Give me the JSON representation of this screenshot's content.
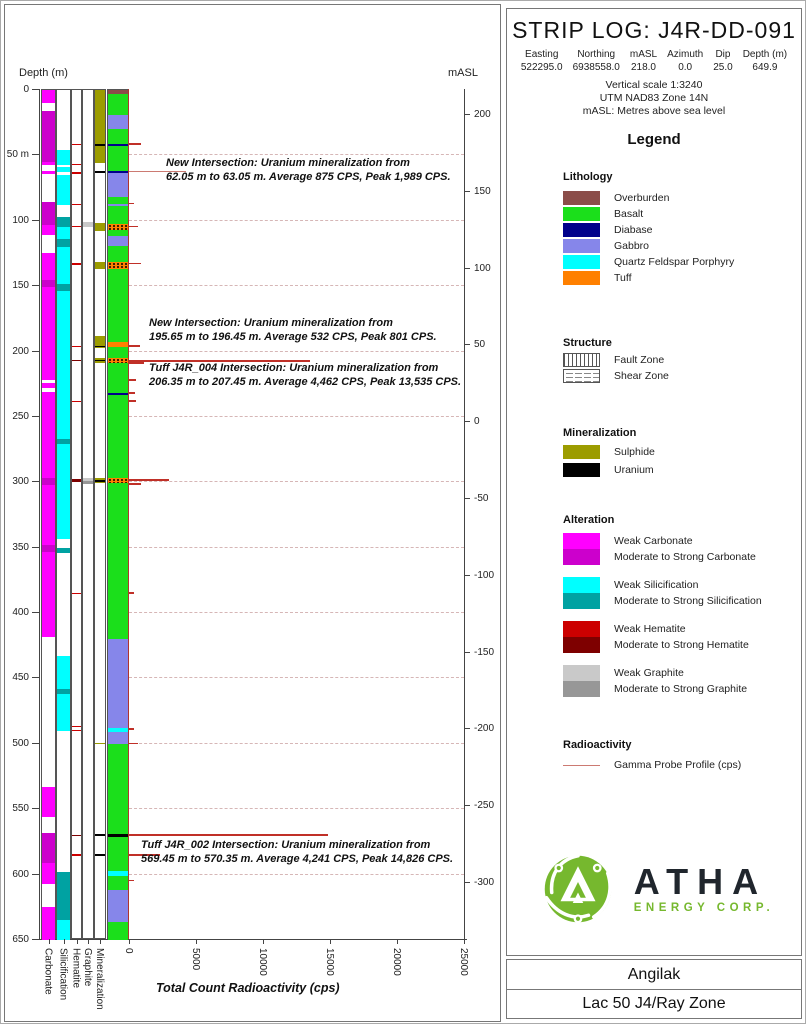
{
  "strip_header": {
    "title": "STRIP LOG: J4R-DD-091",
    "fields": [
      {
        "label": "Easting",
        "value": "522295.0"
      },
      {
        "label": "Northing",
        "value": "6938558.0"
      },
      {
        "label": "mASL",
        "value": "218.0"
      },
      {
        "label": "Azimuth",
        "value": "0.0"
      },
      {
        "label": "Dip",
        "value": "25.0"
      },
      {
        "label": "Depth (m)",
        "value": "649.9"
      }
    ],
    "notes": [
      "Vertical scale 1:3240",
      "UTM NAD83 Zone 14N",
      "mASL: Metres above sea level"
    ]
  },
  "legend": {
    "title": "Legend",
    "lithology": {
      "heading": "Lithology",
      "items": [
        {
          "label": "Overburden",
          "color": "#8b4d49"
        },
        {
          "label": "Basalt",
          "color": "#1bdf1b"
        },
        {
          "label": "Diabase",
          "color": "#00008b"
        },
        {
          "label": "Gabbro",
          "color": "#8686ea"
        },
        {
          "label": "Quartz Feldspar Porphyry",
          "color": "#00ffff"
        },
        {
          "label": "Tuff",
          "color": "#ff8000"
        }
      ]
    },
    "structure": {
      "heading": "Structure",
      "items": [
        {
          "label": "Fault Zone",
          "pattern": "vertical-hatch"
        },
        {
          "label": "Shear Zone",
          "pattern": "dash-hatch"
        }
      ]
    },
    "mineralization": {
      "heading": "Mineralization",
      "items": [
        {
          "label": "Sulphide",
          "color": "#9c9c00"
        },
        {
          "label": "Uranium",
          "color": "#000000"
        }
      ]
    },
    "alteration": {
      "heading": "Alteration",
      "groups": [
        {
          "weak": "Weak Carbonate",
          "strong": "Moderate to Strong Carbonate",
          "weak_color": "#ff00ff",
          "strong_color": "#cc00cc"
        },
        {
          "weak": "Weak Silicification",
          "strong": "Moderate to Strong Silicification",
          "weak_color": "#00ffff",
          "strong_color": "#00a2a2"
        },
        {
          "weak": "Weak Hematite",
          "strong": "Moderate to Strong Hematite",
          "weak_color": "#cc0000",
          "strong_color": "#7e0000"
        },
        {
          "weak": "Weak Graphite",
          "strong": "Moderate to Strong Graphite",
          "weak_color": "#c9c9c9",
          "strong_color": "#979797"
        }
      ]
    },
    "radioactivity": {
      "heading": "Radioactivity",
      "label": "Gamma Probe Profile (cps)",
      "line_color": "#cc7a72"
    }
  },
  "logo": {
    "brand": "ATHA",
    "subtitle": "ENERGY CORP.",
    "green": "#76b82e",
    "dark": "#20262d"
  },
  "title_block": {
    "project": "Angilak",
    "zone": "Lac 50 J4/Ray Zone"
  },
  "chart_data": {
    "type": "strip-log",
    "depth_axis": {
      "label": "Depth (m)",
      "min": 0,
      "max": 650,
      "tick_interval": 50,
      "tick_labels": [
        "0",
        "50 m",
        "100",
        "150",
        "200",
        "250",
        "300",
        "350",
        "400",
        "450",
        "500",
        "550",
        "600",
        "650"
      ]
    },
    "masl_axis": {
      "label": "mASL",
      "ticks": [
        200,
        150,
        100,
        50,
        0,
        -50,
        -100,
        -150,
        -200,
        -250,
        -300
      ]
    },
    "x_axis": {
      "title": "Total Count Radioactivity (cps)",
      "min": 0,
      "max": 25000,
      "ticks": [
        0,
        5000,
        10000,
        15000,
        20000,
        25000
      ]
    },
    "column_labels": [
      "Carbonate",
      "Silicification",
      "Hematite",
      "Graphite",
      "Mineralization"
    ],
    "palette": {
      "Overburden": "#8b4d49",
      "Basalt": "#1bdf1b",
      "Diabase": "#00008b",
      "Gabbro": "#8686ea",
      "QFP": "#00ffff",
      "Tuff": "#ff8000",
      "Sulphide": "#9c9c00",
      "Uranium": "#000000",
      "carbonate_weak": "#ff00ff",
      "carbonate_strong": "#cc00cc",
      "silicification_weak": "#00ffff",
      "silicification_strong": "#00a2a2",
      "hematite_weak": "#cc0000",
      "hematite_strong": "#7e0000",
      "graphite_weak": "#c9c9c9",
      "graphite_strong": "#979797",
      "gamma": "#c03028",
      "gridline": "#d6b6b6"
    },
    "lithology_intervals": [
      {
        "from": 0,
        "to": 3,
        "unit": "Overburden"
      },
      {
        "from": 3,
        "to": 19,
        "unit": "Basalt"
      },
      {
        "from": 19,
        "to": 30,
        "unit": "Gabbro"
      },
      {
        "from": 30,
        "to": 41,
        "unit": "Basalt"
      },
      {
        "from": 41,
        "to": 42.5,
        "unit": "Diabase"
      },
      {
        "from": 42.5,
        "to": 61.8,
        "unit": "Basalt"
      },
      {
        "from": 61.8,
        "to": 63.5,
        "unit": "Diabase"
      },
      {
        "from": 63.5,
        "to": 82,
        "unit": "Gabbro"
      },
      {
        "from": 82,
        "to": 87.5,
        "unit": "Basalt"
      },
      {
        "from": 87.5,
        "to": 89,
        "unit": "Gabbro"
      },
      {
        "from": 89,
        "to": 102.5,
        "unit": "Basalt"
      },
      {
        "from": 102.5,
        "to": 107,
        "unit": "Tuff",
        "dots": true
      },
      {
        "from": 107,
        "to": 112,
        "unit": "Basalt"
      },
      {
        "from": 112,
        "to": 119,
        "unit": "Gabbro"
      },
      {
        "from": 119,
        "to": 131.5,
        "unit": "Basalt"
      },
      {
        "from": 131.5,
        "to": 137,
        "unit": "Tuff",
        "dots": true
      },
      {
        "from": 137,
        "to": 193,
        "unit": "Basalt"
      },
      {
        "from": 193,
        "to": 196.5,
        "unit": "Tuff"
      },
      {
        "from": 196.5,
        "to": 205,
        "unit": "Basalt"
      },
      {
        "from": 205,
        "to": 209,
        "unit": "Tuff",
        "dots": true
      },
      {
        "from": 209,
        "to": 231.5,
        "unit": "Basalt"
      },
      {
        "from": 231.5,
        "to": 233,
        "unit": "Diabase"
      },
      {
        "from": 233,
        "to": 297,
        "unit": "Basalt"
      },
      {
        "from": 297,
        "to": 300.5,
        "unit": "Tuff",
        "dots": true
      },
      {
        "from": 300.5,
        "to": 420,
        "unit": "Basalt"
      },
      {
        "from": 420,
        "to": 488,
        "unit": "Gabbro"
      },
      {
        "from": 488,
        "to": 491,
        "unit": "QFP"
      },
      {
        "from": 491,
        "to": 500,
        "unit": "Gabbro"
      },
      {
        "from": 500,
        "to": 569,
        "unit": "Basalt"
      },
      {
        "from": 569,
        "to": 571,
        "unit": "Uranium"
      },
      {
        "from": 571,
        "to": 597,
        "unit": "Basalt"
      },
      {
        "from": 597,
        "to": 601,
        "unit": "QFP"
      },
      {
        "from": 601,
        "to": 612,
        "unit": "Basalt"
      },
      {
        "from": 612,
        "to": 636,
        "unit": "Gabbro"
      },
      {
        "from": 636,
        "to": 650,
        "unit": "Basalt"
      }
    ],
    "carbonate_intervals": [
      {
        "from": 0,
        "to": 10,
        "grade": "weak"
      },
      {
        "from": 16,
        "to": 55,
        "grade": "strong"
      },
      {
        "from": 55,
        "to": 57,
        "grade": "weak"
      },
      {
        "from": 62,
        "to": 64,
        "grade": "weak"
      },
      {
        "from": 86,
        "to": 103,
        "grade": "strong"
      },
      {
        "from": 103,
        "to": 111,
        "grade": "weak"
      },
      {
        "from": 125,
        "to": 145,
        "grade": "weak"
      },
      {
        "from": 145,
        "to": 151,
        "grade": "strong"
      },
      {
        "from": 151,
        "to": 222,
        "grade": "weak"
      },
      {
        "from": 224,
        "to": 228,
        "grade": "weak"
      },
      {
        "from": 231,
        "to": 297,
        "grade": "weak"
      },
      {
        "from": 297,
        "to": 302,
        "grade": "strong"
      },
      {
        "from": 302,
        "to": 348,
        "grade": "weak"
      },
      {
        "from": 348,
        "to": 353,
        "grade": "strong"
      },
      {
        "from": 353,
        "to": 418,
        "grade": "weak"
      },
      {
        "from": 533,
        "to": 556,
        "grade": "weak"
      },
      {
        "from": 568,
        "to": 591,
        "grade": "strong"
      },
      {
        "from": 591,
        "to": 607,
        "grade": "weak"
      },
      {
        "from": 625,
        "to": 650,
        "grade": "weak"
      }
    ],
    "silicification_intervals": [
      {
        "from": 46,
        "to": 57,
        "grade": "weak"
      },
      {
        "from": 59,
        "to": 63,
        "grade": "weak"
      },
      {
        "from": 65,
        "to": 88,
        "grade": "weak"
      },
      {
        "from": 97,
        "to": 105,
        "grade": "strong"
      },
      {
        "from": 105,
        "to": 114,
        "grade": "weak"
      },
      {
        "from": 114,
        "to": 120,
        "grade": "strong"
      },
      {
        "from": 120,
        "to": 148,
        "grade": "weak"
      },
      {
        "from": 148,
        "to": 154,
        "grade": "strong"
      },
      {
        "from": 154,
        "to": 267,
        "grade": "weak"
      },
      {
        "from": 267,
        "to": 271,
        "grade": "strong"
      },
      {
        "from": 271,
        "to": 343,
        "grade": "weak"
      },
      {
        "from": 350,
        "to": 354,
        "grade": "strong"
      },
      {
        "from": 433,
        "to": 458,
        "grade": "weak"
      },
      {
        "from": 458,
        "to": 462,
        "grade": "strong"
      },
      {
        "from": 462,
        "to": 490,
        "grade": "weak"
      },
      {
        "from": 598,
        "to": 635,
        "grade": "strong"
      },
      {
        "from": 635,
        "to": 650,
        "grade": "weak"
      }
    ],
    "hematite_intervals": [
      {
        "from": 41,
        "to": 42,
        "grade": "weak"
      },
      {
        "from": 56.5,
        "to": 57.5,
        "grade": "weak"
      },
      {
        "from": 63,
        "to": 64,
        "grade": "weak"
      },
      {
        "from": 87,
        "to": 88,
        "grade": "weak"
      },
      {
        "from": 104,
        "to": 105,
        "grade": "weak"
      },
      {
        "from": 132.5,
        "to": 134,
        "grade": "weak"
      },
      {
        "from": 195.5,
        "to": 196.5,
        "grade": "weak"
      },
      {
        "from": 206.5,
        "to": 207.5,
        "grade": "strong"
      },
      {
        "from": 237.5,
        "to": 238.5,
        "grade": "weak"
      },
      {
        "from": 297.5,
        "to": 299.5,
        "grade": "strong"
      },
      {
        "from": 384.5,
        "to": 385.5,
        "grade": "weak"
      },
      {
        "from": 486.5,
        "to": 487.5,
        "grade": "weak"
      },
      {
        "from": 489.5,
        "to": 490.5,
        "grade": "weak"
      },
      {
        "from": 569.5,
        "to": 570.5,
        "grade": "strong"
      },
      {
        "from": 584.5,
        "to": 585.5,
        "grade": "weak"
      }
    ],
    "graphite_intervals": [
      {
        "from": 101,
        "to": 105,
        "grade": "weak"
      },
      {
        "from": 296.5,
        "to": 299,
        "grade": "weak"
      },
      {
        "from": 299,
        "to": 301.5,
        "grade": "strong"
      }
    ],
    "mineralization_intervals": [
      {
        "from": 0,
        "to": 41,
        "type": "Sulphide"
      },
      {
        "from": 41,
        "to": 42.5,
        "type": "Uranium"
      },
      {
        "from": 42.5,
        "to": 56,
        "type": "Sulphide"
      },
      {
        "from": 62,
        "to": 63.3,
        "type": "Uranium"
      },
      {
        "from": 102,
        "to": 108,
        "type": "Sulphide"
      },
      {
        "from": 131.5,
        "to": 137,
        "type": "Sulphide"
      },
      {
        "from": 188,
        "to": 197,
        "type": "Sulphide"
      },
      {
        "from": 195.6,
        "to": 196.6,
        "type": "Uranium"
      },
      {
        "from": 205,
        "to": 209,
        "type": "Sulphide"
      },
      {
        "from": 206.3,
        "to": 207.6,
        "type": "Uranium"
      },
      {
        "from": 297,
        "to": 300.5,
        "type": "Sulphide"
      },
      {
        "from": 298.5,
        "to": 299.7,
        "type": "Uranium"
      },
      {
        "from": 499,
        "to": 500.5,
        "type": "Sulphide"
      },
      {
        "from": 569.3,
        "to": 570.6,
        "type": "Uranium"
      },
      {
        "from": 584.6,
        "to": 585.6,
        "type": "Uranium"
      }
    ],
    "gamma_spikes": [
      {
        "depth": 41.5,
        "cps": 900
      },
      {
        "depth": 62.5,
        "cps": 1989
      },
      {
        "depth": 87,
        "cps": 350
      },
      {
        "depth": 104.5,
        "cps": 700
      },
      {
        "depth": 133,
        "cps": 900
      },
      {
        "depth": 196,
        "cps": 801
      },
      {
        "depth": 206.9,
        "cps": 13535
      },
      {
        "depth": 209,
        "cps": 1100
      },
      {
        "depth": 222,
        "cps": 500
      },
      {
        "depth": 232,
        "cps": 450
      },
      {
        "depth": 238,
        "cps": 520
      },
      {
        "depth": 298.5,
        "cps": 3000
      },
      {
        "depth": 301.5,
        "cps": 900
      },
      {
        "depth": 385,
        "cps": 400
      },
      {
        "depth": 489,
        "cps": 350
      },
      {
        "depth": 500,
        "cps": 650
      },
      {
        "depth": 570,
        "cps": 14826
      },
      {
        "depth": 585,
        "cps": 2300
      },
      {
        "depth": 605,
        "cps": 400
      }
    ],
    "annotations": [
      {
        "line1": "New Intersection: Uranium mineralization from",
        "line2": "62.05 m to 63.05 m. Average 875 CPS, Peak 1,989 CPS."
      },
      {
        "line1": "New Intersection: Uranium mineralization from",
        "line2": "195.65 m to 196.45 m. Average 532 CPS, Peak 801 CPS."
      },
      {
        "line1": "Tuff J4R_004 Intersection: Uranium mineralization from",
        "line2": "206.35 m to 207.45 m. Average 4,462 CPS, Peak 13,535 CPS."
      },
      {
        "line1": "Tuff J4R_002 Intersection: Uranium mineralization from",
        "line2": "569.45 m to 570.35 m. Average 4,241 CPS, Peak 14,826 CPS."
      }
    ]
  }
}
